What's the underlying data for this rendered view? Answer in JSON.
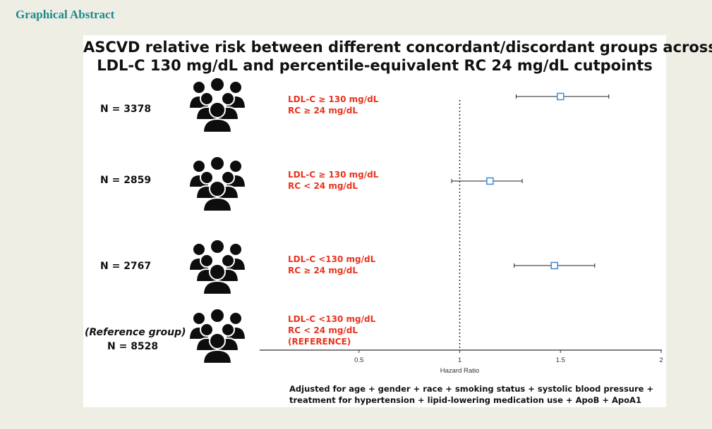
{
  "header": {
    "title": "Graphical Abstract"
  },
  "chart_data": {
    "type": "forest",
    "title_lines": [
      "ASCVD relative risk between different concordant/discordant groups across",
      "LDL-C 130 mg/dL and percentile-equivalent RC 24 mg/dL cutpoints"
    ],
    "xlabel": "Hazard Ratio",
    "xlim": [
      0,
      2
    ],
    "xticks": [
      0.5,
      1,
      1.5,
      2
    ],
    "xtick_labels": [
      "0.5",
      "1",
      "1.5",
      "2"
    ],
    "reference_line": 1,
    "groups": [
      {
        "n_label": "N = 3378",
        "ldl": "LDL-C ≥ 130 mg/dL",
        "rc": "RC ≥ 24 mg/dL",
        "hr": 1.5,
        "lower": 1.28,
        "upper": 1.74
      },
      {
        "n_label": "N = 2859",
        "ldl": "LDL-C ≥ 130 mg/dL",
        "rc": "RC < 24 mg/dL",
        "hr": 1.15,
        "lower": 0.96,
        "upper": 1.31
      },
      {
        "n_label": "N = 2767",
        "ldl": "LDL-C <130 mg/dL",
        "rc": "RC ≥ 24 mg/dL",
        "hr": 1.47,
        "lower": 1.27,
        "upper": 1.67
      },
      {
        "n_label": "N = 8528",
        "sub_label": "(Reference group)",
        "ldl": "LDL-C <130 mg/dL",
        "rc": "RC < 24 mg/dL",
        "ref": "(REFERENCE)"
      }
    ],
    "colors": {
      "marker": "#4a8fd8",
      "ci": "#222222",
      "group_text": "#e8331c"
    }
  },
  "footnote": "Adjusted for age + gender + race + smoking status + systolic blood pressure + treatment for hypertension + lipid-lowering medication use + ApoB + ApoA1"
}
